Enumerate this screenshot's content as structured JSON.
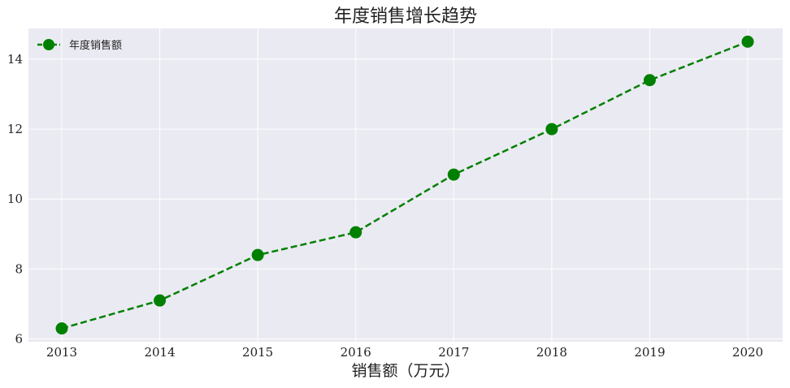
{
  "chart_data": {
    "type": "line",
    "title": "年度销售增长趋势",
    "xlabel": "销售额（万元）",
    "ylabel": "",
    "x": [
      "2013",
      "2014",
      "2015",
      "2016",
      "2017",
      "2018",
      "2019",
      "2020"
    ],
    "series": [
      {
        "name": "年度销售额",
        "values": [
          6.3,
          7.1,
          8.4,
          9.05,
          10.7,
          12.0,
          13.4,
          14.5
        ],
        "color": "#008000",
        "line_style": "dashed",
        "marker": "circle"
      }
    ],
    "yticks": [
      "6",
      "8",
      "10",
      "12",
      "14"
    ],
    "ylim": [
      5.92,
      14.88
    ],
    "grid": true,
    "legend": "top-left",
    "background": "#eaeaf2"
  }
}
